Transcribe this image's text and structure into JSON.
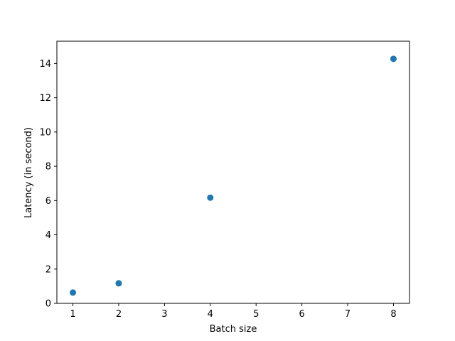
{
  "colors": {
    "marker": "#1f77b4",
    "axis": "#000000",
    "background": "#ffffff"
  },
  "chart_data": {
    "type": "scatter",
    "title": "",
    "xlabel": "Batch size",
    "ylabel": "Latency (in second)",
    "xlim": [
      0.65,
      8.35
    ],
    "ylim": [
      0,
      15.3
    ],
    "xticks": [
      "1",
      "2",
      "3",
      "4",
      "5",
      "6",
      "7",
      "8"
    ],
    "yticks": [
      "0",
      "2",
      "4",
      "6",
      "8",
      "10",
      "12",
      "14"
    ],
    "grid": false,
    "legend": "none",
    "series": [
      {
        "x": [
          1,
          2,
          4,
          8
        ],
        "y": [
          0.63,
          1.17,
          6.17,
          14.27
        ]
      }
    ]
  }
}
